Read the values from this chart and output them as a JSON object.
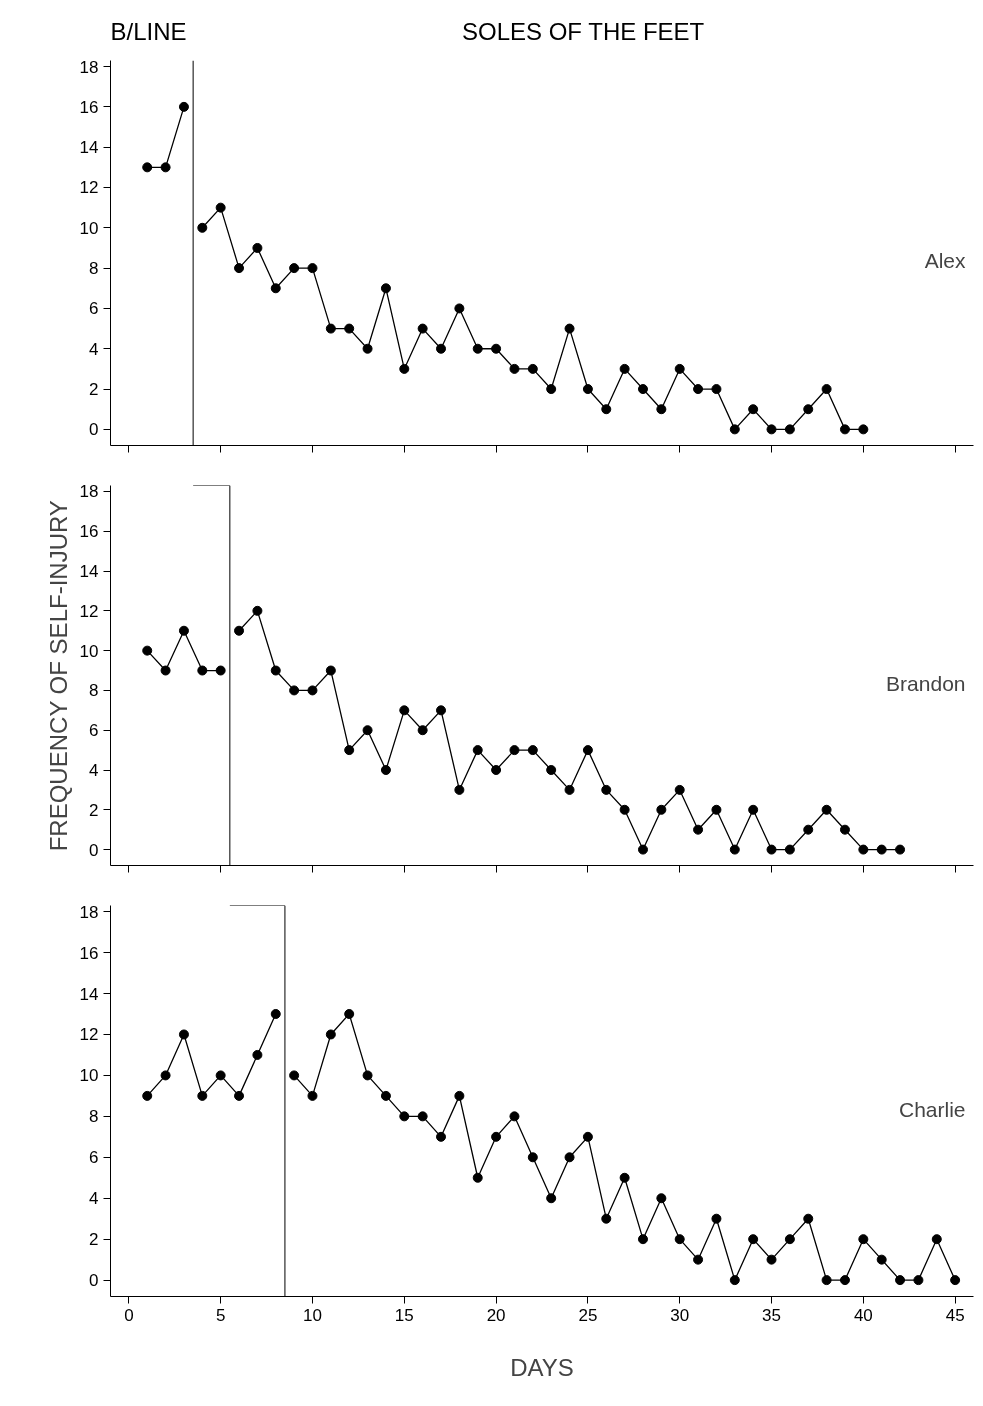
{
  "chart_data": [
    {
      "type": "line",
      "annotations": [
        "B/LINE",
        "SOLES OF THE FEET",
        "Alex"
      ],
      "xlim": [
        -1,
        46
      ],
      "xticks": [
        0,
        5,
        10,
        15,
        20,
        25,
        30,
        35,
        40,
        45
      ],
      "ylim": [
        -0.8,
        18.3
      ],
      "yticks": [
        0,
        2,
        4,
        6,
        8,
        10,
        12,
        14,
        16,
        18
      ],
      "tick_labels": "y",
      "marker": "circle",
      "line_style": "solid",
      "grid": false,
      "series": [
        {
          "color": "#000000",
          "x": [
            1,
            2,
            3
          ],
          "values": [
            13,
            13,
            16
          ]
        },
        {
          "color": "#000000",
          "x": [
            4,
            5,
            6,
            7,
            8,
            9,
            10,
            11,
            12,
            13,
            14,
            15,
            16,
            17,
            18,
            19,
            20,
            21,
            22,
            23,
            24,
            25,
            26,
            27,
            28,
            29,
            30,
            31,
            32,
            33,
            34,
            35,
            36,
            37,
            38,
            39,
            40
          ],
          "values": [
            10,
            11,
            8,
            9,
            7,
            8,
            8,
            5,
            5,
            4,
            7,
            3,
            5,
            4,
            6,
            4,
            4,
            3,
            3,
            2,
            5,
            2,
            1,
            3,
            2,
            1,
            3,
            2,
            2,
            0,
            1,
            0,
            0,
            1,
            2,
            0,
            0
          ]
        }
      ],
      "ref_lines": [
        {
          "axis": "x",
          "value": 3.5,
          "color": "#000000"
        }
      ]
    },
    {
      "type": "line",
      "ylabel": "FREQUENCY OF SELF-INJURY",
      "annotations": [
        "Brandon"
      ],
      "xlim": [
        -1,
        46
      ],
      "xticks": [
        0,
        5,
        10,
        15,
        20,
        25,
        30,
        35,
        40,
        45
      ],
      "ylim": [
        -0.8,
        18.3
      ],
      "yticks": [
        0,
        2,
        4,
        6,
        8,
        10,
        12,
        14,
        16,
        18
      ],
      "tick_labels": "y",
      "marker": "circle",
      "line_style": "solid",
      "grid": false,
      "series": [
        {
          "color": "#000000",
          "x": [
            1,
            2,
            3,
            4,
            5
          ],
          "values": [
            10,
            9,
            11,
            9,
            9
          ]
        },
        {
          "color": "#000000",
          "x": [
            6,
            7,
            8,
            9,
            10,
            11,
            12,
            13,
            14,
            15,
            16,
            17,
            18,
            19,
            20,
            21,
            22,
            23,
            24,
            25,
            26,
            27,
            28,
            29,
            30,
            31,
            32,
            33,
            34,
            35,
            36,
            37,
            38,
            39,
            40,
            41,
            42
          ],
          "values": [
            11,
            12,
            9,
            8,
            8,
            9,
            5,
            6,
            4,
            7,
            6,
            7,
            3,
            5,
            4,
            5,
            5,
            4,
            3,
            5,
            3,
            2,
            0,
            2,
            3,
            1,
            2,
            0,
            2,
            0,
            0,
            1,
            2,
            1,
            0,
            0,
            0
          ]
        }
      ],
      "ref_lines": [
        {
          "axis": "x",
          "value": 5.5,
          "color": "#000000"
        }
      ]
    },
    {
      "type": "line",
      "xlabel": "DAYS",
      "annotations": [
        "Charlie"
      ],
      "xlim": [
        -1,
        46
      ],
      "xticks": [
        0,
        5,
        10,
        15,
        20,
        25,
        30,
        35,
        40,
        45
      ],
      "ylim": [
        -0.8,
        18.3
      ],
      "yticks": [
        0,
        2,
        4,
        6,
        8,
        10,
        12,
        14,
        16,
        18
      ],
      "marker": "circle",
      "line_style": "solid",
      "grid": false,
      "series": [
        {
          "color": "#000000",
          "x": [
            1,
            2,
            3,
            4,
            5,
            6,
            7,
            8
          ],
          "values": [
            9,
            10,
            12,
            9,
            10,
            9,
            11,
            13
          ]
        },
        {
          "color": "#000000",
          "x": [
            9,
            10,
            11,
            12,
            13,
            14,
            15,
            16,
            17,
            18,
            19,
            20,
            21,
            22,
            23,
            24,
            25,
            26,
            27,
            28,
            29,
            30,
            31,
            32,
            33,
            34,
            35,
            36,
            37,
            38,
            39,
            40,
            41,
            42,
            43,
            44,
            45
          ],
          "values": [
            10,
            9,
            12,
            13,
            10,
            9,
            8,
            8,
            7,
            9,
            5,
            7,
            8,
            6,
            4,
            6,
            7,
            3,
            5,
            2,
            4,
            2,
            1,
            3,
            0,
            2,
            1,
            2,
            3,
            0,
            0,
            2,
            1,
            0,
            0,
            2,
            0
          ]
        }
      ],
      "ref_lines": [
        {
          "axis": "x",
          "value": 8.5,
          "color": "#000000"
        }
      ]
    }
  ]
}
